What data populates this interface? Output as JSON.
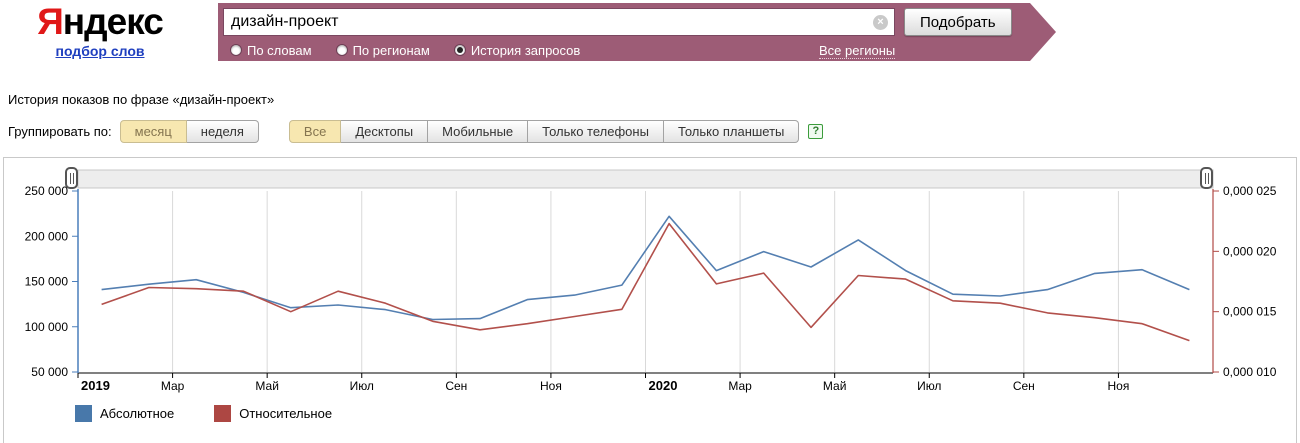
{
  "header": {
    "logo": {
      "ya": "Я",
      "rest": "ндекс",
      "sub_link": "подбор слов"
    },
    "search": {
      "query": "дизайн-проект",
      "clear_glyph": "×",
      "submit_label": "Подобрать",
      "regions_link": "Все регионы"
    },
    "modes": [
      {
        "label": "По словам",
        "selected": false
      },
      {
        "label": "По регионам",
        "selected": false
      },
      {
        "label": "История запросов",
        "selected": true
      }
    ]
  },
  "page": {
    "title": "История показов по фразе «дизайн-проект»"
  },
  "controls": {
    "group_by_label": "Группировать по:",
    "group_by": [
      {
        "label": "месяц",
        "selected": true
      },
      {
        "label": "неделя",
        "selected": false
      }
    ],
    "device_filters": [
      {
        "label": "Все",
        "selected": true
      },
      {
        "label": "Десктопы",
        "selected": false
      },
      {
        "label": "Мобильные",
        "selected": false
      },
      {
        "label": "Только телефоны",
        "selected": false
      },
      {
        "label": "Только планшеты",
        "selected": false
      }
    ],
    "help_glyph": "?"
  },
  "chart_data": {
    "type": "line",
    "months": [
      "Янв 2019",
      "Фев 2019",
      "Мар 2019",
      "Апр 2019",
      "Май 2019",
      "Июн 2019",
      "Июл 2019",
      "Авг 2019",
      "Сен 2019",
      "Окт 2019",
      "Ноя 2019",
      "Дек 2019",
      "Янв 2020",
      "Фев 2020",
      "Мар 2020",
      "Апр 2020",
      "Май 2020",
      "Июн 2020",
      "Июл 2020",
      "Авг 2020",
      "Сен 2020",
      "Окт 2020",
      "Ноя 2020",
      "Дек 2020"
    ],
    "x_tick_labels": [
      {
        "label": "2019",
        "bold": true
      },
      {
        "label": "Мар",
        "bold": false
      },
      {
        "label": "Май",
        "bold": false
      },
      {
        "label": "Июл",
        "bold": false
      },
      {
        "label": "Сен",
        "bold": false
      },
      {
        "label": "Ноя",
        "bold": false
      },
      {
        "label": "2020",
        "bold": true
      },
      {
        "label": "Мар",
        "bold": false
      },
      {
        "label": "Май",
        "bold": false
      },
      {
        "label": "Июл",
        "bold": false
      },
      {
        "label": "Сен",
        "bold": false
      },
      {
        "label": "Ноя",
        "bold": false
      }
    ],
    "left_axis": {
      "labels": [
        "250 000",
        "200 000",
        "150 000",
        "100 000",
        "50 000"
      ],
      "max": 250000,
      "min": 50000,
      "step": 50000,
      "color": "#4a7ebb"
    },
    "right_axis": {
      "labels": [
        "0,000 025",
        "0,000 020",
        "0,000 015",
        "0,000 010"
      ],
      "max": 2.5e-05,
      "min": 1e-05,
      "step": 5e-06,
      "color": "#b04a45"
    },
    "grid_color": "#d9d9d9",
    "series": [
      {
        "name": "Абсолютное",
        "axis": "left",
        "color": "#547fb1",
        "values": [
          141000,
          147000,
          152000,
          138000,
          121000,
          124000,
          119000,
          108000,
          109000,
          130000,
          135000,
          146000,
          222000,
          162000,
          183000,
          166000,
          196000,
          162000,
          136000,
          134000,
          141000,
          159000,
          163000,
          141000
        ]
      },
      {
        "name": "Относительное",
        "axis": "right",
        "color": "#b2504b",
        "values": [
          1.56e-05,
          1.7e-05,
          1.69e-05,
          1.67e-05,
          1.5e-05,
          1.67e-05,
          1.57e-05,
          1.42e-05,
          1.35e-05,
          1.4e-05,
          1.46e-05,
          1.52e-05,
          2.23e-05,
          1.73e-05,
          1.82e-05,
          1.37e-05,
          1.8e-05,
          1.77e-05,
          1.59e-05,
          1.57e-05,
          1.49e-05,
          1.45e-05,
          1.4e-05,
          1.26e-05
        ]
      }
    ],
    "legend": [
      {
        "label": "Абсолютное",
        "color": "#4878aa"
      },
      {
        "label": "Относительное",
        "color": "#ad4743"
      }
    ]
  }
}
